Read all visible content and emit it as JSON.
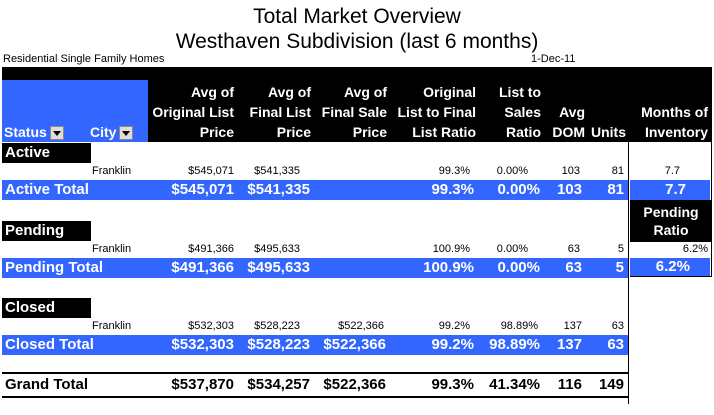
{
  "title_line1": "Total Market Overview",
  "title_line2": "Westhaven Subdivision (last 6 months)",
  "subtitle_left": "Residential Single Family Homes",
  "date": "1-Dec-11",
  "headers": {
    "status": "Status",
    "city": "City",
    "avg_orig": [
      "Avg of",
      "Original List",
      "Price"
    ],
    "avg_final": [
      "Avg of",
      "Final List",
      "Price"
    ],
    "avg_sale": [
      "Avg of",
      "Final Sale",
      "Price"
    ],
    "orig_ratio": [
      "Original",
      "List to Final",
      "List Ratio"
    ],
    "sales_ratio": [
      "List to",
      "Sales",
      "Ratio"
    ],
    "dom": [
      "Avg",
      "DOM"
    ],
    "units": "Units",
    "months": [
      "Months of",
      "Inventory"
    ]
  },
  "active": {
    "label": "Active",
    "city": "Franklin",
    "detail": [
      "$545,071",
      "$541,335",
      "",
      "99.3%",
      "0.00%",
      "103",
      "81",
      "7.7"
    ],
    "total_label": "Active Total",
    "total": [
      "$545,071",
      "$541,335",
      "",
      "99.3%",
      "0.00%",
      "103",
      "81",
      "7.7"
    ]
  },
  "pending_ratio_label": [
    "Pending",
    "Ratio"
  ],
  "pending": {
    "label": "Pending",
    "city": "Franklin",
    "detail": [
      "$491,366",
      "$495,633",
      "",
      "100.9%",
      "0.00%",
      "63",
      "5",
      "6.2%"
    ],
    "total_label": "Pending Total",
    "total": [
      "$491,366",
      "$495,633",
      "",
      "100.9%",
      "0.00%",
      "63",
      "5",
      "6.2%"
    ]
  },
  "closed": {
    "label": "Closed",
    "city": "Franklin",
    "detail": [
      "$532,303",
      "$528,223",
      "$522,366",
      "99.2%",
      "98.89%",
      "137",
      "63"
    ],
    "total_label": "Closed Total",
    "total": [
      "$532,303",
      "$528,223",
      "$522,366",
      "99.2%",
      "98.89%",
      "137",
      "63"
    ]
  },
  "grand": {
    "label": "Grand Total",
    "total": [
      "$537,870",
      "$534,257",
      "$522,366",
      "99.3%",
      "41.34%",
      "116",
      "149"
    ]
  },
  "colors": {
    "header_blue": "#3366ff",
    "black": "#000000"
  }
}
